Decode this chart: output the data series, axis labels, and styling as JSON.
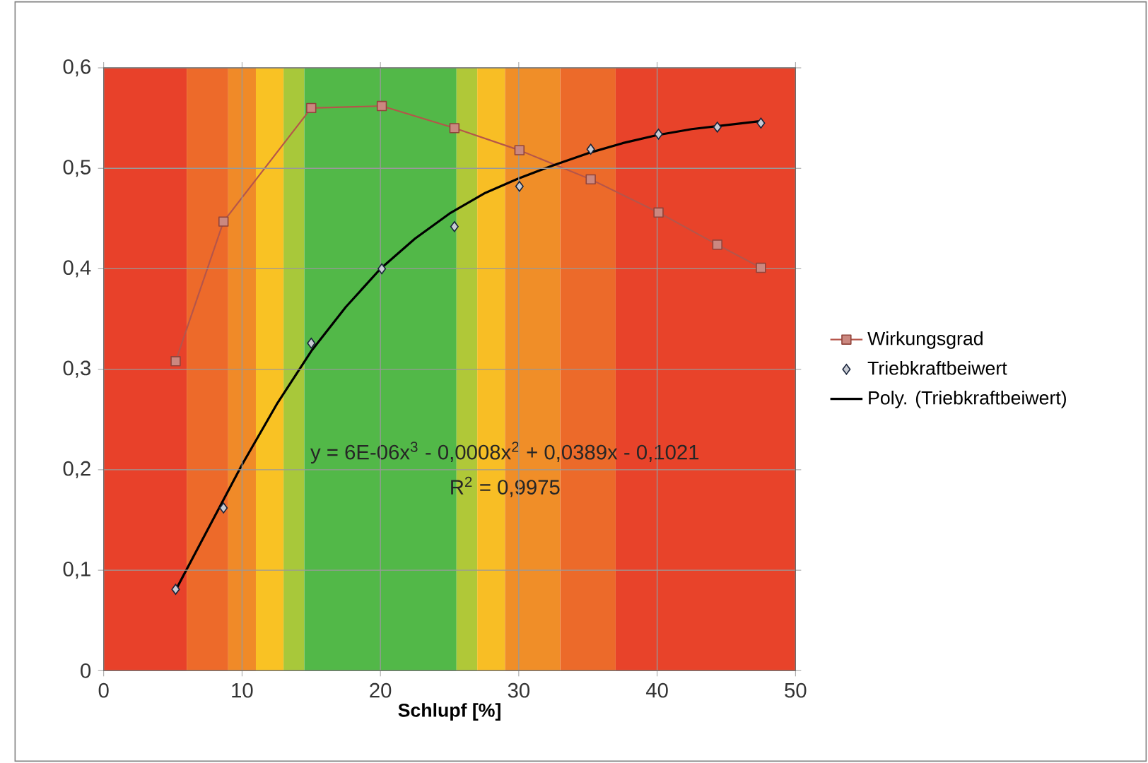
{
  "chart_data": {
    "type": "line",
    "xlabel": "Schlupf [%]",
    "xlim": [
      0,
      50
    ],
    "xticks": [
      0,
      10,
      20,
      30,
      40,
      50
    ],
    "ylim": [
      0,
      0.6
    ],
    "yticks": [
      0,
      {
        "value": 0.1,
        "label": "0,1"
      },
      {
        "value": 0.2,
        "label": "0,2"
      },
      {
        "value": 0.3,
        "label": "0,3"
      },
      {
        "value": 0.4,
        "label": "0,4"
      },
      {
        "value": 0.5,
        "label": "0,5"
      },
      {
        "value": 0.6,
        "label": "0,6"
      }
    ],
    "grid": true,
    "legend": "right",
    "series": [
      {
        "name": "Wirkungsgrad",
        "marker": "square",
        "color": "#b5554a",
        "x": [
          5.2,
          8.66,
          15,
          20.1,
          25.35,
          30.05,
          35.2,
          40.1,
          44.35,
          47.5
        ],
        "values": [
          0.308,
          0.447,
          0.56,
          0.562,
          0.54,
          0.518,
          0.489,
          0.456,
          0.424,
          0.401
        ]
      },
      {
        "name": "Triebkraftbeiwert",
        "type": "scatter",
        "marker": "diamond",
        "color": "#1f2d4a",
        "x": [
          5.2,
          8.66,
          15,
          20.1,
          25.35,
          30.05,
          35.2,
          40.1,
          44.35,
          47.5
        ],
        "values": [
          0.081,
          0.162,
          0.326,
          0.4,
          0.442,
          0.482,
          0.519,
          0.534,
          0.541,
          0.545
        ]
      },
      {
        "name": "Poly. (Triebkraftbeiwert)",
        "marker": "none",
        "color": "#000000",
        "x": [
          5.2,
          7.5,
          10,
          12.5,
          15,
          17.5,
          20,
          22.5,
          25,
          27.5,
          30,
          32.5,
          35,
          37.5,
          40,
          42.5,
          45,
          47.5
        ],
        "values": [
          0.08,
          0.14,
          0.205,
          0.265,
          0.318,
          0.362,
          0.4,
          0.43,
          0.455,
          0.475,
          0.49,
          0.503,
          0.515,
          0.525,
          0.533,
          0.539,
          0.543,
          0.547
        ]
      }
    ],
    "bands": [
      {
        "axis": "x",
        "from": 0,
        "to": 6,
        "color": "#e8412a"
      },
      {
        "axis": "x",
        "from": 6,
        "to": 9,
        "color": "#ed6a2a"
      },
      {
        "axis": "x",
        "from": 9,
        "to": 11,
        "color": "#f08a28"
      },
      {
        "axis": "x",
        "from": 11,
        "to": 13,
        "color": "#f9c224"
      },
      {
        "axis": "x",
        "from": 13,
        "to": 14.5,
        "color": "#a8c83a"
      },
      {
        "axis": "x",
        "from": 14.5,
        "to": 25.5,
        "color": "#52b848"
      },
      {
        "axis": "x",
        "from": 25.5,
        "to": 27,
        "color": "#b0c838"
      },
      {
        "axis": "x",
        "from": 27,
        "to": 29,
        "color": "#f8be25"
      },
      {
        "axis": "x",
        "from": 29,
        "to": 33,
        "color": "#f08e28"
      },
      {
        "axis": "x",
        "from": 33,
        "to": 37,
        "color": "#ec6a2a"
      },
      {
        "axis": "x",
        "from": 37,
        "to": 50,
        "color": "#e8432a"
      }
    ],
    "annotations": [
      "y = 6E-06x$^{3}$ - 0,0008x$^{2}$ + 0,0389x - 0,1021",
      "R$^{2}$ = 0,9975"
    ]
  }
}
